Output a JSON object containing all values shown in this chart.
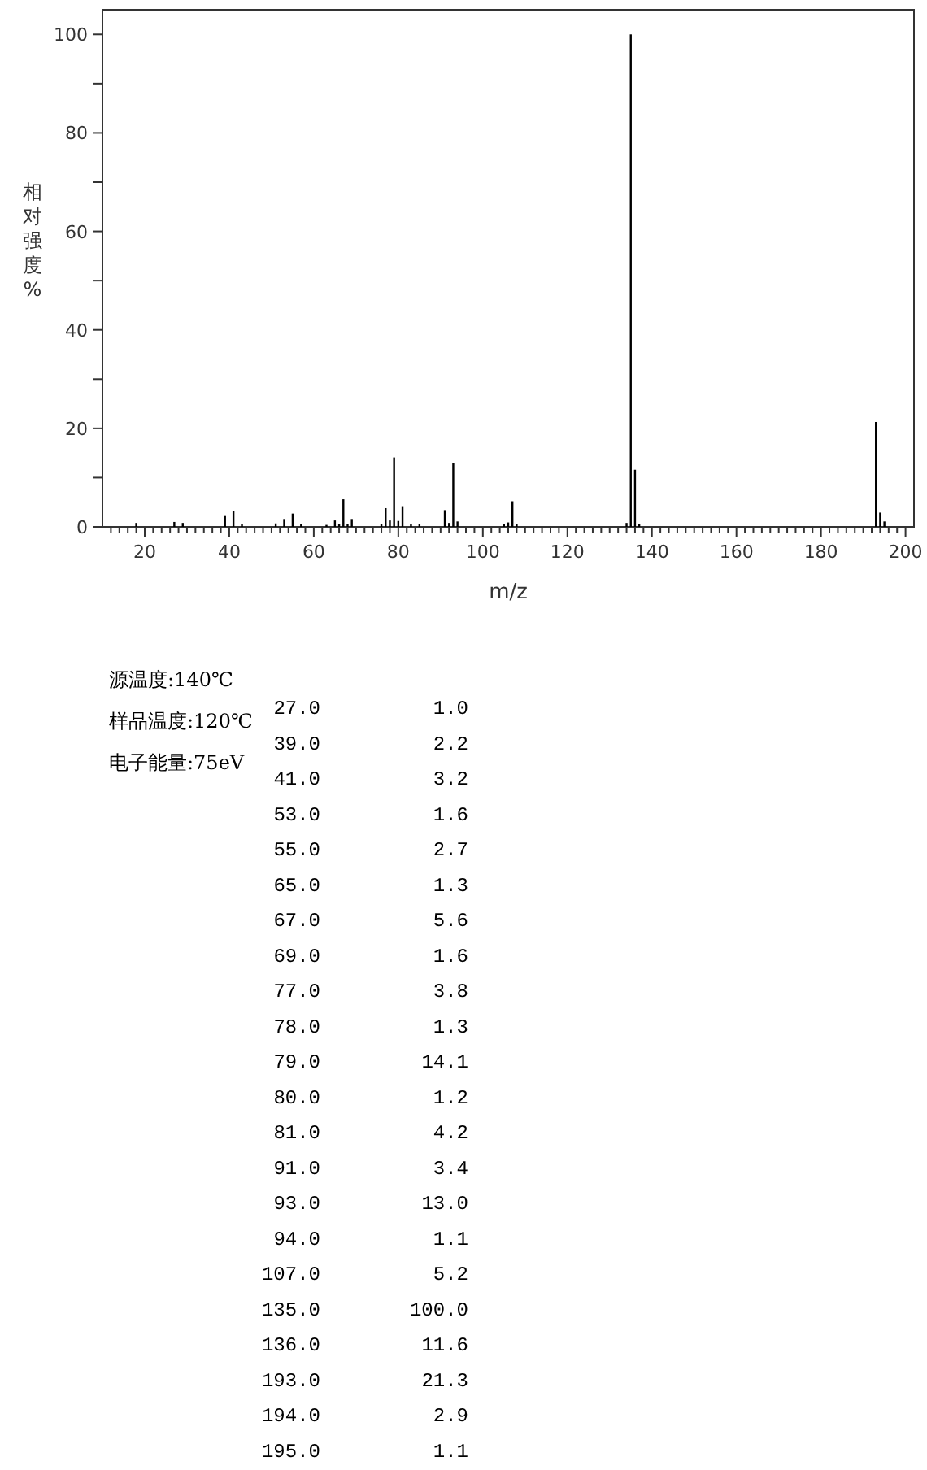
{
  "chart_data": [
    {
      "type": "bar",
      "ylabel": "相对强度%",
      "xlabel": "m/z",
      "color": "#000000",
      "x": [
        18,
        27,
        29,
        39,
        41,
        43,
        51,
        53,
        55,
        57,
        63,
        65,
        66,
        67,
        68,
        69,
        76,
        77,
        78,
        79,
        80,
        81,
        83,
        85,
        91,
        92,
        93,
        94,
        105,
        106,
        107,
        108,
        134,
        135,
        136,
        137,
        193,
        194,
        195
      ],
      "values": [
        0.8,
        1.0,
        0.8,
        2.2,
        3.2,
        0.5,
        0.7,
        1.6,
        2.7,
        0.5,
        0.4,
        1.3,
        0.5,
        5.6,
        0.6,
        1.6,
        0.6,
        3.8,
        1.3,
        14.1,
        1.2,
        4.2,
        0.5,
        0.5,
        3.4,
        0.8,
        13.0,
        1.1,
        0.5,
        0.9,
        5.2,
        0.5,
        0.8,
        100.0,
        11.6,
        0.6,
        21.3,
        2.9,
        1.1
      ],
      "xlim": [
        10,
        202
      ],
      "ylim": [
        0,
        105
      ],
      "xticks": [
        {
          "value": 12,
          "label": null
        },
        {
          "value": 14,
          "label": null
        },
        {
          "value": 16,
          "label": null
        },
        {
          "value": 18,
          "label": null
        },
        20,
        {
          "value": 22,
          "label": null
        },
        {
          "value": 24,
          "label": null
        },
        {
          "value": 26,
          "label": null
        },
        {
          "value": 28,
          "label": null
        },
        {
          "value": 30,
          "label": null
        },
        {
          "value": 32,
          "label": null
        },
        {
          "value": 34,
          "label": null
        },
        {
          "value": 36,
          "label": null
        },
        {
          "value": 38,
          "label": null
        },
        40,
        {
          "value": 42,
          "label": null
        },
        {
          "value": 44,
          "label": null
        },
        {
          "value": 46,
          "label": null
        },
        {
          "value": 48,
          "label": null
        },
        {
          "value": 50,
          "label": null
        },
        {
          "value": 52,
          "label": null
        },
        {
          "value": 54,
          "label": null
        },
        {
          "value": 56,
          "label": null
        },
        {
          "value": 58,
          "label": null
        },
        60,
        {
          "value": 62,
          "label": null
        },
        {
          "value": 64,
          "label": null
        },
        {
          "value": 66,
          "label": null
        },
        {
          "value": 68,
          "label": null
        },
        {
          "value": 70,
          "label": null
        },
        {
          "value": 72,
          "label": null
        },
        {
          "value": 74,
          "label": null
        },
        {
          "value": 76,
          "label": null
        },
        {
          "value": 78,
          "label": null
        },
        80,
        {
          "value": 82,
          "label": null
        },
        {
          "value": 84,
          "label": null
        },
        {
          "value": 86,
          "label": null
        },
        {
          "value": 88,
          "label": null
        },
        {
          "value": 90,
          "label": null
        },
        {
          "value": 92,
          "label": null
        },
        {
          "value": 94,
          "label": null
        },
        {
          "value": 96,
          "label": null
        },
        {
          "value": 98,
          "label": null
        },
        100,
        {
          "value": 102,
          "label": null
        },
        {
          "value": 104,
          "label": null
        },
        {
          "value": 106,
          "label": null
        },
        {
          "value": 108,
          "label": null
        },
        {
          "value": 110,
          "label": null
        },
        {
          "value": 112,
          "label": null
        },
        {
          "value": 114,
          "label": null
        },
        {
          "value": 116,
          "label": null
        },
        {
          "value": 118,
          "label": null
        },
        120,
        {
          "value": 122,
          "label": null
        },
        {
          "value": 124,
          "label": null
        },
        {
          "value": 126,
          "label": null
        },
        {
          "value": 128,
          "label": null
        },
        {
          "value": 130,
          "label": null
        },
        {
          "value": 132,
          "label": null
        },
        {
          "value": 134,
          "label": null
        },
        {
          "value": 136,
          "label": null
        },
        {
          "value": 138,
          "label": null
        },
        140,
        {
          "value": 142,
          "label": null
        },
        {
          "value": 144,
          "label": null
        },
        {
          "value": 146,
          "label": null
        },
        {
          "value": 148,
          "label": null
        },
        {
          "value": 150,
          "label": null
        },
        {
          "value": 152,
          "label": null
        },
        {
          "value": 154,
          "label": null
        },
        {
          "value": 156,
          "label": null
        },
        {
          "value": 158,
          "label": null
        },
        160,
        {
          "value": 162,
          "label": null
        },
        {
          "value": 164,
          "label": null
        },
        {
          "value": 166,
          "label": null
        },
        {
          "value": 168,
          "label": null
        },
        {
          "value": 170,
          "label": null
        },
        {
          "value": 172,
          "label": null
        },
        {
          "value": 174,
          "label": null
        },
        {
          "value": 176,
          "label": null
        },
        {
          "value": 178,
          "label": null
        },
        180,
        {
          "value": 182,
          "label": null
        },
        {
          "value": 184,
          "label": null
        },
        {
          "value": 186,
          "label": null
        },
        {
          "value": 188,
          "label": null
        },
        {
          "value": 190,
          "label": null
        },
        {
          "value": 192,
          "label": null
        },
        {
          "value": 194,
          "label": null
        },
        {
          "value": 196,
          "label": null
        },
        {
          "value": 198,
          "label": null
        },
        200
      ],
      "yticks": [
        0,
        {
          "value": 10,
          "label": null
        },
        20,
        {
          "value": 30,
          "label": null
        },
        40,
        {
          "value": 50,
          "label": null
        },
        60,
        {
          "value": 70,
          "label": null
        },
        80,
        {
          "value": 90,
          "label": null
        },
        100
      ],
      "annotations": [
        "源温度:140℃",
        "样品温度:120℃",
        "电子能量:75eV"
      ]
    },
    {
      "type": "other",
      "annotations": [
        "27.0",
        "1.0",
        "39.0",
        "2.2",
        "41.0",
        "3.2",
        "53.0",
        "1.6",
        "55.0",
        "2.7",
        "65.0",
        "1.3",
        "67.0",
        "5.6",
        "69.0",
        "1.6",
        "77.0",
        "3.8",
        "78.0",
        "1.3",
        "79.0",
        "14.1",
        "80.0",
        "1.2",
        "81.0",
        "4.2",
        "91.0",
        "3.4",
        "93.0",
        "13.0",
        "94.0",
        "1.1",
        "107.0",
        "5.2",
        "135.0",
        "100.0",
        "136.0",
        "11.6",
        "193.0",
        "21.3",
        "194.0",
        "2.9",
        "195.0",
        "1.1"
      ]
    }
  ]
}
